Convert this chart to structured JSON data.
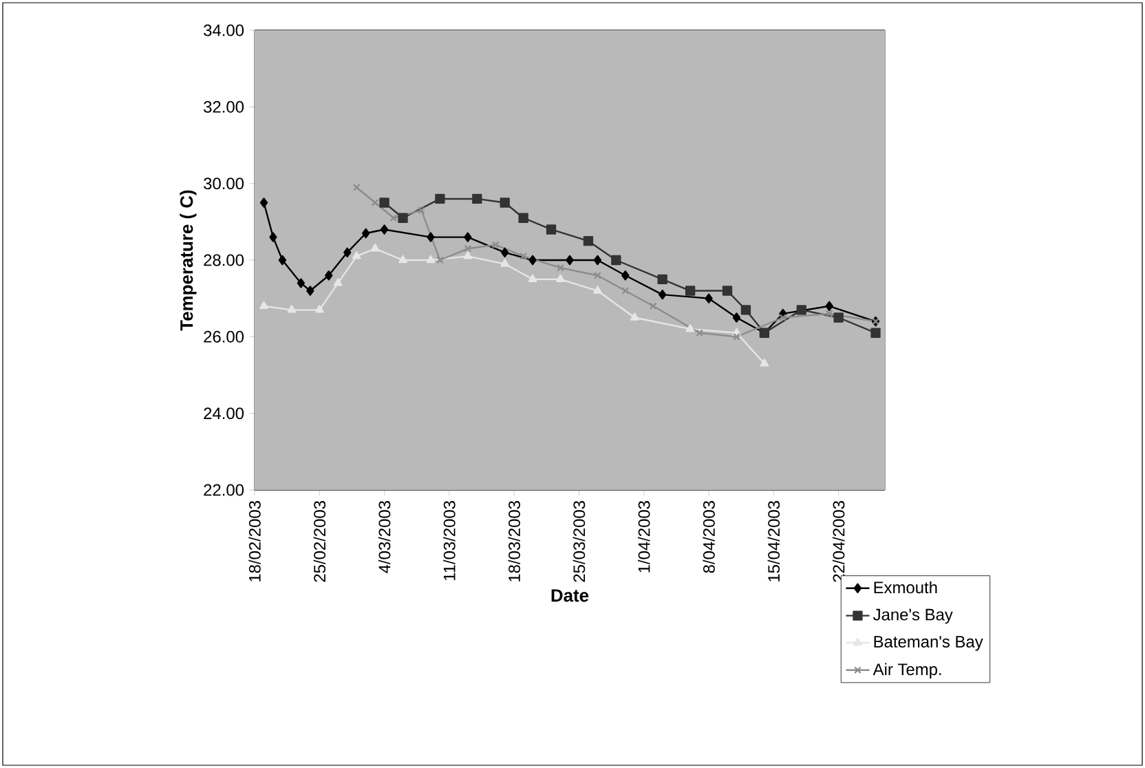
{
  "chart_data": {
    "type": "line",
    "xlabel": "Date",
    "ylabel": "Temperature ( C)",
    "xlim": [
      "2003-02-18",
      "2003-04-27"
    ],
    "xticks": [
      {
        "value": "2003-02-18",
        "label": "18/02/2003"
      },
      {
        "value": "2003-02-25",
        "label": "25/02/2003"
      },
      {
        "value": "2003-03-04",
        "label": "4/03/2003"
      },
      {
        "value": "2003-03-11",
        "label": "11/03/2003"
      },
      {
        "value": "2003-03-18",
        "label": "18/03/2003"
      },
      {
        "value": "2003-03-25",
        "label": "25/03/2003"
      },
      {
        "value": "2003-04-01",
        "label": "1/04/2003"
      },
      {
        "value": "2003-04-08",
        "label": "8/04/2003"
      },
      {
        "value": "2003-04-15",
        "label": "15/04/2003"
      },
      {
        "value": "2003-04-22",
        "label": "22/04/2003"
      }
    ],
    "ylim": [
      22,
      34
    ],
    "yticks": [
      {
        "value": 22,
        "label": "22.00"
      },
      {
        "value": 24,
        "label": "24.00"
      },
      {
        "value": 26,
        "label": "26.00"
      },
      {
        "value": 28,
        "label": "28.00"
      },
      {
        "value": 30,
        "label": "30.00"
      },
      {
        "value": 32,
        "label": "32.00"
      },
      {
        "value": 34,
        "label": "34.00"
      }
    ],
    "grid": "y",
    "legend": "bottom right",
    "line_style": "solid",
    "series": [
      {
        "name": "Exmouth",
        "color": "#000000",
        "marker": "diamond",
        "x": [
          "2003-02-19",
          "2003-02-20",
          "2003-02-21",
          "2003-02-23",
          "2003-02-24",
          "2003-02-26",
          "2003-02-28",
          "2003-03-02",
          "2003-03-04",
          "2003-03-09",
          "2003-03-13",
          "2003-03-17",
          "2003-03-20",
          "2003-03-24",
          "2003-03-27",
          "2003-03-30",
          "2003-04-03",
          "2003-04-08",
          "2003-04-11",
          "2003-04-14",
          "2003-04-16",
          "2003-04-21",
          "2003-04-26"
        ],
        "values": [
          29.5,
          28.6,
          28.0,
          27.4,
          27.2,
          27.6,
          28.2,
          28.7,
          28.8,
          28.6,
          28.6,
          28.2,
          28.0,
          28.0,
          28.0,
          27.6,
          27.1,
          27.0,
          26.5,
          26.1,
          26.6,
          26.8,
          26.4
        ]
      },
      {
        "name": "Jane's Bay",
        "color": "#333333",
        "marker": "square",
        "x": [
          "2003-03-04",
          "2003-03-06",
          "2003-03-10",
          "2003-03-14",
          "2003-03-17",
          "2003-03-19",
          "2003-03-22",
          "2003-03-26",
          "2003-03-29",
          "2003-04-03",
          "2003-04-06",
          "2003-04-10",
          "2003-04-12",
          "2003-04-14",
          "2003-04-18",
          "2003-04-22",
          "2003-04-26"
        ],
        "values": [
          29.5,
          29.1,
          29.6,
          29.6,
          29.5,
          29.1,
          28.8,
          28.5,
          28.0,
          27.5,
          27.2,
          27.2,
          26.7,
          26.1,
          26.7,
          26.5,
          26.1
        ]
      },
      {
        "name": "Bateman's Bay",
        "color": "#e6e6e6",
        "marker": "triangle",
        "x": [
          "2003-02-19",
          "2003-02-22",
          "2003-02-25",
          "2003-02-27",
          "2003-03-01",
          "2003-03-03",
          "2003-03-06",
          "2003-03-09",
          "2003-03-13",
          "2003-03-17",
          "2003-03-20",
          "2003-03-23",
          "2003-03-27",
          "2003-03-31",
          "2003-04-06",
          "2003-04-11",
          "2003-04-14"
        ],
        "values": [
          26.8,
          26.7,
          26.7,
          27.4,
          28.1,
          28.3,
          28.0,
          28.0,
          28.1,
          27.9,
          27.5,
          27.5,
          27.2,
          26.5,
          26.2,
          26.1,
          25.3
        ]
      },
      {
        "name": "Air Temp.",
        "color": "#8c8c8c",
        "marker": "cross",
        "x": [
          "2003-03-01",
          "2003-03-03",
          "2003-03-05",
          "2003-03-08",
          "2003-03-10",
          "2003-03-13",
          "2003-03-16",
          "2003-03-19",
          "2003-03-23",
          "2003-03-27",
          "2003-03-30",
          "2003-04-02",
          "2003-04-07",
          "2003-04-11",
          "2003-04-16",
          "2003-04-21",
          "2003-04-26"
        ],
        "values": [
          29.9,
          29.5,
          29.1,
          29.3,
          28.0,
          28.3,
          28.4,
          28.1,
          27.8,
          27.6,
          27.2,
          26.8,
          26.1,
          26.0,
          26.5,
          26.6,
          26.4
        ]
      }
    ]
  }
}
